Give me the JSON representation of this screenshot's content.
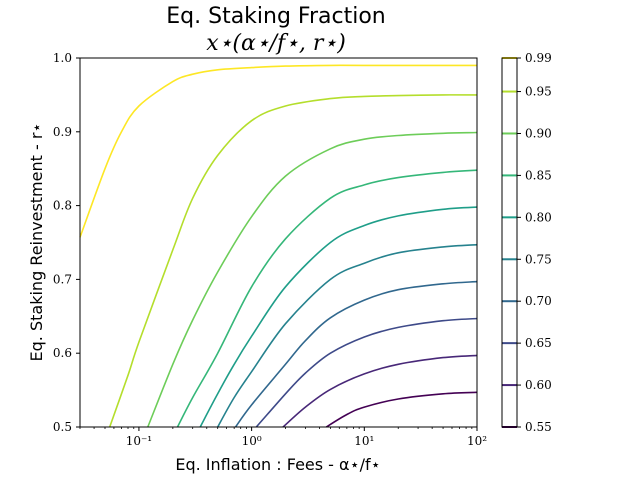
{
  "chart_data": {
    "type": "line",
    "title": "Eq. Staking Fraction",
    "subtitle": "x⋆(α⋆/f⋆, r⋆)",
    "xlabel": "Eq. Inflation : Fees - α⋆/f⋆",
    "ylabel": "Eq. Staking Reinvestment - r⋆",
    "xscale": "log",
    "xlim": [
      0.03,
      100
    ],
    "ylim": [
      0.5,
      1.0
    ],
    "x_ticks": [
      {
        "value": 0.1,
        "label": "10⁻¹"
      },
      {
        "value": 1,
        "label": "10⁰"
      },
      {
        "value": 10,
        "label": "10¹"
      },
      {
        "value": 100,
        "label": "10²"
      }
    ],
    "y_ticks": [
      "0.5",
      "0.6",
      "0.7",
      "0.8",
      "0.9",
      "1.0"
    ],
    "grid": false,
    "colorbar": {
      "labels": [
        "0.55",
        "0.60",
        "0.65",
        "0.70",
        "0.75",
        "0.80",
        "0.85",
        "0.90",
        "0.95",
        "0.99"
      ],
      "colors": [
        "#440154",
        "#482878",
        "#3e4a89",
        "#31688e",
        "#26828e",
        "#1f9e89",
        "#35b779",
        "#6dcd59",
        "#b4de2c",
        "#fde725"
      ],
      "range": [
        0.55,
        0.99
      ]
    },
    "series": [
      {
        "level": "0.55",
        "x": [
          4.6,
          7,
          10,
          20,
          50,
          100
        ],
        "y": [
          0.5,
          0.517,
          0.527,
          0.538,
          0.545,
          0.547
        ]
      },
      {
        "level": "0.60",
        "x": [
          1.9,
          3,
          5,
          10,
          20,
          50,
          100
        ],
        "y": [
          0.5,
          0.527,
          0.551,
          0.572,
          0.585,
          0.594,
          0.597
        ]
      },
      {
        "level": "0.65",
        "x": [
          1.1,
          2,
          3,
          5,
          10,
          20,
          50,
          100
        ],
        "y": [
          0.5,
          0.545,
          0.573,
          0.6,
          0.622,
          0.635,
          0.644,
          0.647
        ]
      },
      {
        "level": "0.70",
        "x": [
          0.72,
          1,
          2,
          3,
          5,
          10,
          20,
          50,
          100
        ],
        "y": [
          0.5,
          0.53,
          0.585,
          0.617,
          0.648,
          0.672,
          0.686,
          0.694,
          0.697
        ]
      },
      {
        "level": "0.75",
        "x": [
          0.5,
          0.7,
          1,
          2,
          5,
          10,
          20,
          50,
          100
        ],
        "y": [
          0.5,
          0.54,
          0.575,
          0.64,
          0.7,
          0.722,
          0.736,
          0.744,
          0.747
        ]
      },
      {
        "level": "0.80",
        "x": [
          0.35,
          0.5,
          0.7,
          1,
          2,
          5,
          10,
          20,
          50,
          100
        ],
        "y": [
          0.5,
          0.545,
          0.585,
          0.623,
          0.69,
          0.75,
          0.773,
          0.786,
          0.795,
          0.798
        ]
      },
      {
        "level": "0.85",
        "x": [
          0.22,
          0.3,
          0.5,
          1,
          2,
          5,
          10,
          20,
          50,
          100
        ],
        "y": [
          0.5,
          0.54,
          0.6,
          0.69,
          0.755,
          0.81,
          0.828,
          0.838,
          0.845,
          0.848
        ]
      },
      {
        "level": "0.90",
        "x": [
          0.12,
          0.2,
          0.3,
          0.5,
          1,
          2,
          5,
          10,
          20,
          50,
          100
        ],
        "y": [
          0.5,
          0.585,
          0.645,
          0.71,
          0.785,
          0.84,
          0.877,
          0.89,
          0.895,
          0.898,
          0.899
        ]
      },
      {
        "level": "0.95",
        "x": [
          0.055,
          0.08,
          0.1,
          0.2,
          0.3,
          0.5,
          1,
          2,
          5,
          10,
          20,
          50,
          100
        ],
        "y": [
          0.5,
          0.57,
          0.615,
          0.74,
          0.81,
          0.868,
          0.915,
          0.935,
          0.945,
          0.948,
          0.949,
          0.95,
          0.95
        ]
      },
      {
        "level": "0.99",
        "x": [
          0.03,
          0.05,
          0.07,
          0.1,
          0.2,
          0.3,
          0.5,
          1,
          2,
          5,
          10,
          100
        ],
        "y": [
          0.757,
          0.85,
          0.9,
          0.935,
          0.968,
          0.978,
          0.984,
          0.987,
          0.989,
          0.99,
          0.99,
          0.99
        ]
      }
    ]
  }
}
